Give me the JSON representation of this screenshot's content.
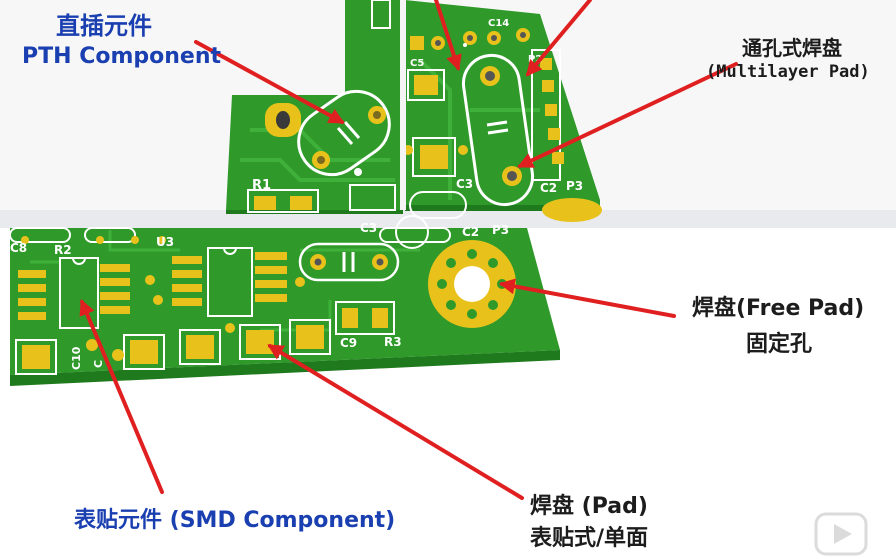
{
  "labels": {
    "pth_cn": "直插元件",
    "pth_en": "PTH Component",
    "multilayer_cn": "通孔式焊盘",
    "multilayer_en": "(Multilayer Pad)",
    "freepad_line1": "焊盘(Free Pad)",
    "freepad_line2": "固定孔",
    "smd_component": "表贴元件 (SMD Component)",
    "pad_line1": "焊盘 (Pad)",
    "pad_line2": "表贴式/单面"
  },
  "silkscreen": {
    "top": [
      "R1",
      "C5",
      "C14",
      "P2",
      "C3",
      "C2",
      "P3"
    ],
    "bottom": [
      "C8",
      "R2",
      "U3",
      "C3",
      "C2",
      "P3",
      "C9",
      "R3",
      "C10",
      "C"
    ]
  },
  "colors": {
    "board": "#2f9a2a",
    "board_dark": "#1e7a1c",
    "pad": "#e8c21a",
    "silk": "#ffffff",
    "arrow": "#e02020",
    "label_blue": "#1a3fb0",
    "label_dark": "#1c1c1c"
  },
  "watermark": {
    "icon": "play-logo-icon"
  }
}
